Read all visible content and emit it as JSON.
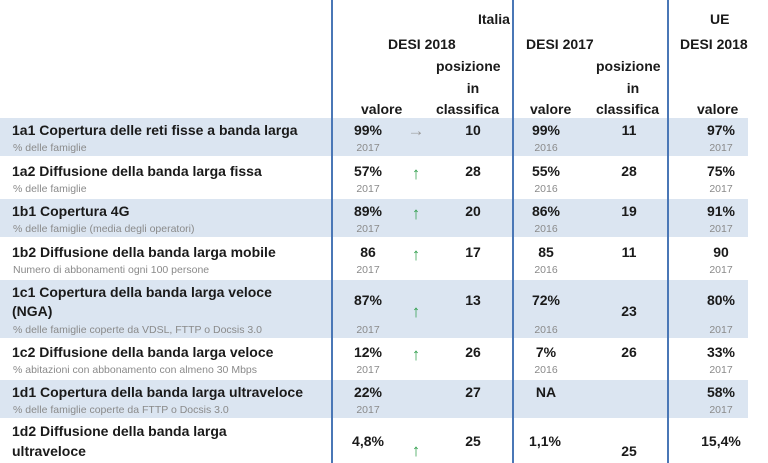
{
  "header": {
    "italia": "Italia",
    "desi2018": "DESI 2018",
    "desi2017": "DESI 2017",
    "ue": "UE",
    "ue_desi2018": "DESI 2018",
    "valore": "valore",
    "posizione_line1": "posizione",
    "posizione_line2": "in",
    "posizione_line3": "classifica"
  },
  "rows": [
    {
      "title": "1a1 Copertura delle reti fisse a banda larga",
      "subtitle": "% delle famiglie",
      "v2018": "99%",
      "trend": "side",
      "rank2018": "10",
      "y2018": "2017",
      "v2017": "99%",
      "rank2017": "11",
      "y2017": "2016",
      "ue": "97%",
      "yue": "2017"
    },
    {
      "title": "1a2 Diffusione della banda larga fissa",
      "subtitle": "% delle famiglie",
      "v2018": "57%",
      "trend": "up",
      "rank2018": "28",
      "y2018": "2017",
      "v2017": "55%",
      "rank2017": "28",
      "y2017": "2016",
      "ue": "75%",
      "yue": "2017"
    },
    {
      "title": "1b1 Copertura 4G",
      "subtitle": "% delle famiglie (media degli operatori)",
      "v2018": "89%",
      "trend": "up",
      "rank2018": "20",
      "y2018": "2017",
      "v2017": "86%",
      "rank2017": "19",
      "y2017": "2016",
      "ue": "91%",
      "yue": "2017"
    },
    {
      "title": "1b2 Diffusione della banda larga mobile",
      "subtitle": "Numero di abbonamenti ogni 100 persone",
      "v2018": "86",
      "trend": "up",
      "rank2018": "17",
      "y2018": "2017",
      "v2017": "85",
      "rank2017": "11",
      "y2017": "2016",
      "ue": "90",
      "yue": "2017"
    },
    {
      "title": "1c1 Copertura della banda larga veloce",
      "title2": "(NGA)",
      "subtitle": "% delle famiglie coperte da VDSL, FTTP o Docsis 3.0",
      "v2018": "87%",
      "trend": "up",
      "rank2018": "13",
      "y2018": "2017",
      "v2017": "72%",
      "rank2017": "23",
      "y2017": "2016",
      "ue": "80%",
      "yue": "2017"
    },
    {
      "title": "1c2 Diffusione della banda larga veloce",
      "subtitle": "% abitazioni con abbonamento con almeno 30 Mbps",
      "v2018": "12%",
      "trend": "up",
      "rank2018": "26",
      "y2018": "2017",
      "v2017": "7%",
      "rank2017": "26",
      "y2017": "2016",
      "ue": "33%",
      "yue": "2017"
    },
    {
      "title": "1d1 Copertura della banda larga ultraveloce",
      "subtitle": "% delle famiglie coperte da FTTP o Docsis 3.0",
      "v2018": "22%",
      "trend": "",
      "rank2018": "27",
      "y2018": "2017",
      "v2017": "NA",
      "rank2017": "",
      "y2017": "",
      "ue": "58%",
      "yue": "2017"
    },
    {
      "title": "1d2 Diffusione della banda larga",
      "title2": "ultraveloce",
      "subtitle": "",
      "v2018": "4,8%",
      "trend": "up",
      "rank2018": "25",
      "y2018": "",
      "v2017": "1,1%",
      "rank2017": "25",
      "y2017": "",
      "ue": "15,4%",
      "yue": ""
    }
  ],
  "arrows": {
    "up": "↑",
    "side": "→"
  }
}
